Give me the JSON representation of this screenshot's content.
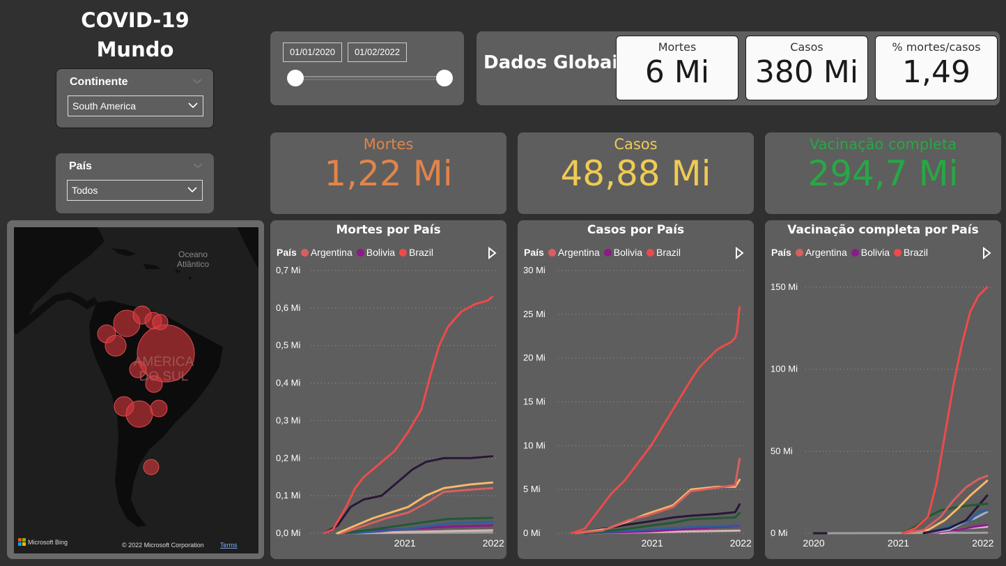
{
  "header": {
    "title_line1": "COVID-19",
    "title_line2": "Mundo"
  },
  "filters": {
    "continent": {
      "label": "Continente",
      "value": "South America"
    },
    "country": {
      "label": "País",
      "value": "Todos"
    }
  },
  "date_range": {
    "start": "01/01/2020",
    "end": "01/02/2022"
  },
  "global": {
    "title": "Dados Globais",
    "deaths": {
      "label": "Mortes",
      "value": "6 Mi"
    },
    "cases": {
      "label": "Casos",
      "value": "380 Mi"
    },
    "ratio": {
      "label": "% mortes/casos",
      "value": "1,49"
    }
  },
  "kpis": {
    "deaths": {
      "label": "Mortes",
      "value": "1,22 Mi",
      "color": "#e2844a"
    },
    "cases": {
      "label": "Casos",
      "value": "48,88 Mi",
      "color": "#efcb54"
    },
    "vaccination": {
      "label": "Vacinação completa",
      "value": "294,7 Mi",
      "color": "#27a844"
    }
  },
  "map": {
    "ocean_label_1": "Oceano",
    "ocean_label_2": "Atlântico",
    "region_label_1": "AMÉRICA",
    "region_label_2": "DO SUL",
    "bing_label": "Microsoft Bing",
    "copyright": "© 2022 Microsoft Corporation",
    "terms": "Terms"
  },
  "legend": {
    "title": "País",
    "items": [
      {
        "name": "Argentina",
        "color": "#d95f5f"
      },
      {
        "name": "Bolivia",
        "color": "#8b1a8b"
      },
      {
        "name": "Brazil",
        "color": "#ef4a4a"
      }
    ]
  },
  "chart_data": [
    {
      "type": "line",
      "title": "Mortes por País",
      "yticks": [
        "0,7 Mi",
        "0,6 Mi",
        "0,5 Mi",
        "0,4 Mi",
        "0,3 Mi",
        "0,2 Mi",
        "0,1 Mi",
        "0,0 Mi"
      ],
      "ylim": [
        0,
        0.7
      ],
      "xticks": [
        "2021",
        "2022"
      ],
      "xlim": [
        2020.0,
        2022.1
      ],
      "series": [
        {
          "name": "Brazil",
          "color": "#ef4a4a",
          "points": [
            [
              2020.15,
              0
            ],
            [
              2020.25,
              0.01
            ],
            [
              2020.4,
              0.07
            ],
            [
              2020.5,
              0.12
            ],
            [
              2020.6,
              0.15
            ],
            [
              2020.75,
              0.18
            ],
            [
              2020.95,
              0.22
            ],
            [
              2021.1,
              0.27
            ],
            [
              2021.25,
              0.33
            ],
            [
              2021.35,
              0.42
            ],
            [
              2021.45,
              0.5
            ],
            [
              2021.55,
              0.55
            ],
            [
              2021.7,
              0.59
            ],
            [
              2021.85,
              0.61
            ],
            [
              2022.0,
              0.62
            ],
            [
              2022.05,
              0.63
            ]
          ]
        },
        {
          "color": "#2a1638",
          "points": [
            [
              2020.15,
              0
            ],
            [
              2020.3,
              0.02
            ],
            [
              2020.45,
              0.07
            ],
            [
              2020.6,
              0.09
            ],
            [
              2020.8,
              0.1
            ],
            [
              2020.95,
              0.13
            ],
            [
              2021.15,
              0.17
            ],
            [
              2021.3,
              0.19
            ],
            [
              2021.5,
              0.2
            ],
            [
              2021.8,
              0.2
            ],
            [
              2022.05,
              0.205
            ]
          ]
        },
        {
          "color": "#f7b86b",
          "points": [
            [
              2020.3,
              0
            ],
            [
              2020.5,
              0.02
            ],
            [
              2020.7,
              0.04
            ],
            [
              2020.9,
              0.055
            ],
            [
              2021.1,
              0.07
            ],
            [
              2021.3,
              0.1
            ],
            [
              2021.5,
              0.12
            ],
            [
              2021.8,
              0.13
            ],
            [
              2022.05,
              0.135
            ]
          ]
        },
        {
          "name": "Argentina",
          "color": "#d95f5f",
          "points": [
            [
              2020.35,
              0
            ],
            [
              2020.6,
              0.02
            ],
            [
              2020.85,
              0.04
            ],
            [
              2021.1,
              0.055
            ],
            [
              2021.3,
              0.08
            ],
            [
              2021.5,
              0.11
            ],
            [
              2021.8,
              0.116
            ],
            [
              2022.05,
              0.12
            ]
          ]
        },
        {
          "color": "#1f5a32",
          "points": [
            [
              2020.35,
              0
            ],
            [
              2020.7,
              0.01
            ],
            [
              2021.0,
              0.02
            ],
            [
              2021.3,
              0.03
            ],
            [
              2021.55,
              0.038
            ],
            [
              2022.05,
              0.041
            ]
          ]
        },
        {
          "color": "#2d5f9a",
          "points": [
            [
              2020.45,
              0
            ],
            [
              2020.8,
              0.005
            ],
            [
              2021.2,
              0.015
            ],
            [
              2021.6,
              0.027
            ],
            [
              2022.05,
              0.03
            ]
          ]
        },
        {
          "name": "Bolivia",
          "color": "#8b1a8b",
          "points": [
            [
              2020.4,
              0
            ],
            [
              2020.7,
              0.007
            ],
            [
              2021.2,
              0.013
            ],
            [
              2021.6,
              0.018
            ],
            [
              2022.05,
              0.021
            ]
          ]
        },
        {
          "color": "#d7b3b3",
          "points": [
            [
              2020.4,
              0
            ],
            [
              2021.0,
              0.003
            ],
            [
              2021.6,
              0.006
            ],
            [
              2022.05,
              0.008
            ]
          ]
        },
        {
          "color": "#9e9e9e",
          "points": [
            [
              2020.3,
              0
            ],
            [
              2022.05,
              0.002
            ]
          ]
        }
      ]
    },
    {
      "type": "line",
      "title": "Casos por País",
      "yticks": [
        "30 Mi",
        "25 Mi",
        "20 Mi",
        "15 Mi",
        "10 Mi",
        "5 Mi",
        "0 Mi"
      ],
      "ylim": [
        0,
        30
      ],
      "xticks": [
        "2021",
        "2022"
      ],
      "xlim": [
        2020.0,
        2022.1
      ],
      "series": [
        {
          "name": "Brazil",
          "color": "#ef4a4a",
          "points": [
            [
              2020.15,
              0
            ],
            [
              2020.3,
              0.5
            ],
            [
              2020.45,
              2.5
            ],
            [
              2020.6,
              4.5
            ],
            [
              2020.75,
              6
            ],
            [
              2020.9,
              8
            ],
            [
              2021.05,
              10
            ],
            [
              2021.2,
              12.5
            ],
            [
              2021.35,
              15
            ],
            [
              2021.5,
              17.5
            ],
            [
              2021.6,
              19
            ],
            [
              2021.7,
              20
            ],
            [
              2021.8,
              21
            ],
            [
              2021.95,
              21.8
            ],
            [
              2022.0,
              22.3
            ],
            [
              2022.02,
              23
            ],
            [
              2022.05,
              25.8
            ]
          ]
        },
        {
          "name": "Argentina",
          "color": "#d95f5f",
          "points": [
            [
              2020.2,
              0
            ],
            [
              2020.5,
              0.3
            ],
            [
              2020.8,
              1.5
            ],
            [
              2021.0,
              2
            ],
            [
              2021.3,
              3
            ],
            [
              2021.5,
              4.8
            ],
            [
              2021.8,
              5.2
            ],
            [
              2022.0,
              5.5
            ],
            [
              2022.05,
              8.5
            ]
          ]
        },
        {
          "color": "#f7b86b",
          "points": [
            [
              2020.2,
              0
            ],
            [
              2020.55,
              0.5
            ],
            [
              2020.8,
              1.4
            ],
            [
              2021.0,
              2.2
            ],
            [
              2021.3,
              3.2
            ],
            [
              2021.5,
              5
            ],
            [
              2021.8,
              5.3
            ],
            [
              2022.0,
              5.3
            ],
            [
              2022.05,
              6.1
            ]
          ]
        },
        {
          "color": "#2a1638",
          "points": [
            [
              2020.2,
              0
            ],
            [
              2020.5,
              0.5
            ],
            [
              2020.8,
              1
            ],
            [
              2021.0,
              1.3
            ],
            [
              2021.3,
              1.8
            ],
            [
              2021.5,
              2
            ],
            [
              2021.8,
              2.2
            ],
            [
              2022.0,
              2.4
            ],
            [
              2022.05,
              3.3
            ]
          ]
        },
        {
          "color": "#1f5a32",
          "points": [
            [
              2020.3,
              0
            ],
            [
              2020.7,
              0.4
            ],
            [
              2021.0,
              0.8
            ],
            [
              2021.3,
              1.2
            ],
            [
              2021.5,
              1.6
            ],
            [
              2022.0,
              1.8
            ],
            [
              2022.05,
              2.3
            ]
          ]
        },
        {
          "color": "#2d5f9a",
          "points": [
            [
              2020.3,
              0
            ],
            [
              2021.0,
              0.4
            ],
            [
              2021.5,
              0.7
            ],
            [
              2022.05,
              0.9
            ]
          ]
        },
        {
          "name": "Bolivia",
          "color": "#8b1a8b",
          "points": [
            [
              2020.3,
              0
            ],
            [
              2021.0,
              0.2
            ],
            [
              2021.5,
              0.5
            ],
            [
              2022.05,
              0.85
            ]
          ]
        },
        {
          "color": "#d7b3b3",
          "points": [
            [
              2020.3,
              0
            ],
            [
              2022.05,
              0.3
            ]
          ]
        }
      ]
    },
    {
      "type": "line",
      "title": "Vacinação completa por País",
      "yticks": [
        "150 Mi",
        "100 Mi",
        "50 Mi",
        "0 Mi"
      ],
      "ytick_values": [
        150,
        100,
        50,
        0
      ],
      "ylim": [
        0,
        160
      ],
      "xticks": [
        "2020",
        "2021",
        "2022"
      ],
      "xlim": [
        2019.9,
        2022.1
      ],
      "series": [
        {
          "name": "Brazil",
          "color": "#ef4a4a",
          "points": [
            [
              2021.05,
              0
            ],
            [
              2021.2,
              3
            ],
            [
              2021.35,
              10
            ],
            [
              2021.45,
              30
            ],
            [
              2021.55,
              60
            ],
            [
              2021.65,
              90
            ],
            [
              2021.75,
              115
            ],
            [
              2021.85,
              135
            ],
            [
              2021.95,
              145
            ],
            [
              2022.05,
              150
            ]
          ]
        },
        {
          "name": "Argentina",
          "color": "#d95f5f",
          "points": [
            [
              2021.05,
              0
            ],
            [
              2021.3,
              2
            ],
            [
              2021.5,
              10
            ],
            [
              2021.65,
              20
            ],
            [
              2021.8,
              28
            ],
            [
              2021.95,
              33
            ],
            [
              2022.05,
              35
            ]
          ]
        },
        {
          "color": "#f7b86b",
          "points": [
            [
              2021.05,
              0
            ],
            [
              2021.35,
              2
            ],
            [
              2021.55,
              8
            ],
            [
              2021.7,
              15
            ],
            [
              2021.85,
              23
            ],
            [
              2022.05,
              32
            ]
          ]
        },
        {
          "color": "#1f5a32",
          "points": [
            [
              2021.05,
              0
            ],
            [
              2021.2,
              4
            ],
            [
              2021.35,
              10
            ],
            [
              2021.5,
              14
            ],
            [
              2021.7,
              16
            ],
            [
              2021.85,
              17
            ],
            [
              2022.05,
              18
            ]
          ]
        },
        {
          "color": "#2a1638",
          "points": [
            [
              2021.3,
              0
            ],
            [
              2021.6,
              3
            ],
            [
              2021.8,
              8
            ],
            [
              2021.95,
              17
            ],
            [
              2022.05,
              23
            ]
          ]
        },
        {
          "color": "#2d5f9a",
          "points": [
            [
              2021.3,
              0
            ],
            [
              2021.6,
              4
            ],
            [
              2021.85,
              8
            ],
            [
              2021.95,
              13
            ],
            [
              2022.05,
              14
            ]
          ]
        },
        {
          "color": "#9fb3c8",
          "points": [
            [
              2021.3,
              0
            ],
            [
              2021.6,
              2
            ],
            [
              2021.75,
              6
            ],
            [
              2021.9,
              9
            ],
            [
              2022.05,
              13
            ]
          ]
        },
        {
          "name": "Bolivia",
          "color": "#8b1a8b",
          "points": [
            [
              2021.35,
              0
            ],
            [
              2021.7,
              2
            ],
            [
              2021.9,
              4
            ],
            [
              2022.05,
              5
            ]
          ]
        },
        {
          "color": "#e6b6d8",
          "points": [
            [
              2021.5,
              0
            ],
            [
              2021.8,
              3
            ],
            [
              2022.05,
              4
            ]
          ]
        },
        {
          "color": "#2a1638",
          "points": [
            [
              2020.0,
              0
            ],
            [
              2020.15,
              0
            ]
          ]
        },
        {
          "color": "#9e9e9e",
          "points": [
            [
              2020.15,
              0
            ],
            [
              2022.05,
              0.3
            ]
          ]
        }
      ]
    }
  ]
}
